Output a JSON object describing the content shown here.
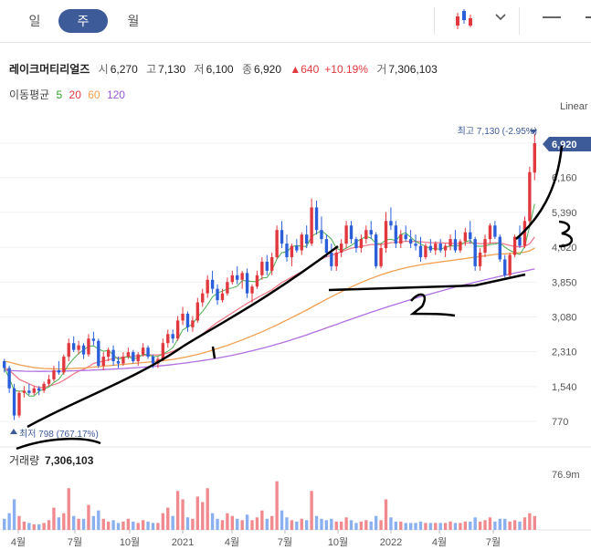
{
  "toolbar": {
    "tabs": [
      {
        "label": "일",
        "active": false
      },
      {
        "label": "주",
        "active": true
      },
      {
        "label": "월",
        "active": false
      }
    ],
    "chart_type_icon": "candlestick-icon",
    "dropdown_icon": "chevron-down-icon",
    "menu_icon": "minus-icon"
  },
  "stock": {
    "name": "레이크머티리얼즈",
    "open_label": "시",
    "open": "6,270",
    "high_label": "고",
    "high": "7,130",
    "low_label": "저",
    "low": "6,100",
    "close_label": "종",
    "close": "6,920",
    "change": "▲640",
    "change_pct": "+10.19%",
    "volume_label": "거",
    "volume": "7,306,103"
  },
  "moving_avg": {
    "label": "이동평균",
    "periods": [
      {
        "value": "5",
        "color": "#2ca02c"
      },
      {
        "value": "20",
        "color": "#e0383e"
      },
      {
        "value": "60",
        "color": "#f0a050"
      },
      {
        "value": "120",
        "color": "#9b59d6"
      }
    ]
  },
  "colors": {
    "up": "#e0383e",
    "down": "#2b5fd9",
    "up_volume": "#f08a8f",
    "down_volume": "#8ab0f0",
    "badge": "#3d5a99"
  },
  "chart_data": {
    "type": "candlestick",
    "scale_label": "Linear",
    "y_ticks": [
      "6,920",
      "6,160",
      "5,390",
      "4,620",
      "3,850",
      "3,080",
      "2,310",
      "1,540",
      "770"
    ],
    "ylim": [
      600,
      7300
    ],
    "x_ticks": [
      "4월",
      "7월",
      "10월",
      "2021",
      "4월",
      "7월",
      "10월",
      "2022",
      "4월",
      "7월"
    ],
    "current_price": "6,920",
    "max_label": "최고 7,130 (-2.95%)",
    "min_label": "최저 798 (767.17%)",
    "volume_label": "거래량",
    "volume_value": "7,306,103",
    "volume_axis_label": "76.9m",
    "candles": [
      [
        2100,
        2150,
        1850,
        1950
      ],
      [
        1950,
        2000,
        1400,
        1500
      ],
      [
        1500,
        1600,
        800,
        900
      ],
      [
        900,
        1450,
        850,
        1400
      ],
      [
        1400,
        1550,
        1300,
        1450
      ],
      [
        1450,
        1600,
        1350,
        1400
      ],
      [
        1400,
        1550,
        1350,
        1500
      ],
      [
        1500,
        1550,
        1350,
        1450
      ],
      [
        1450,
        1650,
        1400,
        1600
      ],
      [
        1600,
        1800,
        1550,
        1700
      ],
      [
        1700,
        2000,
        1650,
        1900
      ],
      [
        1900,
        2100,
        1800,
        1850
      ],
      [
        1850,
        2250,
        1800,
        2200
      ],
      [
        2200,
        2600,
        2100,
        2500
      ],
      [
        2500,
        2650,
        2300,
        2350
      ],
      [
        2350,
        2550,
        2250,
        2450
      ],
      [
        2450,
        2500,
        2150,
        2250
      ],
      [
        2250,
        2700,
        2200,
        2600
      ],
      [
        2600,
        2750,
        2450,
        2550
      ],
      [
        2550,
        2600,
        1950,
        2000
      ],
      [
        2000,
        2300,
        1900,
        2200
      ],
      [
        2200,
        2400,
        2100,
        2350
      ],
      [
        2350,
        2450,
        2000,
        2100
      ],
      [
        2100,
        2200,
        1950,
        2050
      ],
      [
        2050,
        2300,
        2000,
        2200
      ],
      [
        2200,
        2400,
        2150,
        2300
      ],
      [
        2300,
        2350,
        2050,
        2100
      ],
      [
        2100,
        2300,
        2000,
        2250
      ],
      [
        2250,
        2500,
        2200,
        2400
      ],
      [
        2400,
        2450,
        2150,
        2200
      ],
      [
        2200,
        2250,
        1950,
        2050
      ],
      [
        2050,
        2200,
        1950,
        2150
      ],
      [
        2150,
        2600,
        2100,
        2500
      ],
      [
        2500,
        2800,
        2400,
        2700
      ],
      [
        2700,
        2800,
        2500,
        2600
      ],
      [
        2600,
        3100,
        2550,
        3000
      ],
      [
        3000,
        3300,
        2900,
        3150
      ],
      [
        3150,
        3200,
        2750,
        2850
      ],
      [
        2850,
        3100,
        2750,
        3000
      ],
      [
        3000,
        3500,
        2950,
        3400
      ],
      [
        3400,
        3700,
        3300,
        3600
      ],
      [
        3600,
        4000,
        3500,
        3900
      ],
      [
        3900,
        4100,
        3600,
        3700
      ],
      [
        3700,
        3800,
        3350,
        3450
      ],
      [
        3450,
        3700,
        3400,
        3600
      ],
      [
        3600,
        3950,
        3550,
        3850
      ],
      [
        3850,
        4100,
        3800,
        4000
      ],
      [
        4000,
        4200,
        3800,
        3900
      ],
      [
        3900,
        4100,
        3700,
        4050
      ],
      [
        4050,
        4150,
        3500,
        3600
      ],
      [
        3600,
        3800,
        3400,
        3750
      ],
      [
        3750,
        4100,
        3700,
        4000
      ],
      [
        4000,
        4400,
        3900,
        4300
      ],
      [
        4300,
        4450,
        4000,
        4100
      ],
      [
        4100,
        4500,
        4000,
        4400
      ],
      [
        4400,
        5100,
        4350,
        5000
      ],
      [
        5000,
        5200,
        4600,
        4700
      ],
      [
        4700,
        4900,
        4300,
        4400
      ],
      [
        4400,
        4700,
        4200,
        4650
      ],
      [
        4650,
        4800,
        4500,
        4550
      ],
      [
        4550,
        4950,
        4450,
        4900
      ],
      [
        4900,
        5100,
        4600,
        4700
      ],
      [
        4700,
        5700,
        4650,
        5500
      ],
      [
        5500,
        5650,
        4900,
        5000
      ],
      [
        5000,
        5300,
        4700,
        4800
      ],
      [
        4800,
        4900,
        4400,
        4500
      ],
      [
        4500,
        4700,
        4100,
        4200
      ],
      [
        4200,
        4600,
        4100,
        4500
      ],
      [
        4500,
        4800,
        4400,
        4700
      ],
      [
        4700,
        5200,
        4600,
        5100
      ],
      [
        5100,
        5200,
        4700,
        4800
      ],
      [
        4800,
        4850,
        4500,
        4600
      ],
      [
        4600,
        4900,
        4500,
        4800
      ],
      [
        4800,
        5100,
        4700,
        5000
      ],
      [
        5000,
        5200,
        4800,
        4900
      ],
      [
        4900,
        4950,
        4150,
        4200
      ],
      [
        4200,
        4700,
        4150,
        4600
      ],
      [
        4600,
        5400,
        4500,
        5200
      ],
      [
        5200,
        5500,
        5000,
        5100
      ],
      [
        5100,
        5200,
        4600,
        4700
      ],
      [
        4700,
        5000,
        4600,
        4900
      ],
      [
        4900,
        5100,
        4750,
        4800
      ],
      [
        4800,
        5000,
        4600,
        4700
      ],
      [
        4700,
        4900,
        4550,
        4650
      ],
      [
        4650,
        4850,
        4300,
        4400
      ],
      [
        4400,
        4700,
        4350,
        4650
      ],
      [
        4650,
        4800,
        4500,
        4550
      ],
      [
        4550,
        4750,
        4450,
        4700
      ],
      [
        4700,
        4800,
        4500,
        4550
      ],
      [
        4550,
        4700,
        4400,
        4650
      ],
      [
        4650,
        4900,
        4550,
        4800
      ],
      [
        4800,
        5000,
        4500,
        4550
      ],
      [
        4550,
        4800,
        4500,
        4750
      ],
      [
        4750,
        5050,
        4650,
        4950
      ],
      [
        4950,
        5200,
        4700,
        4800
      ],
      [
        4800,
        4850,
        4100,
        4200
      ],
      [
        4200,
        4600,
        4100,
        4500
      ],
      [
        4500,
        4900,
        4400,
        4800
      ],
      [
        4800,
        5150,
        4700,
        5100
      ],
      [
        5100,
        5200,
        4800,
        4850
      ],
      [
        4850,
        4900,
        4300,
        4350
      ],
      [
        4350,
        4450,
        3950,
        4000
      ],
      [
        4000,
        4500,
        3950,
        4450
      ],
      [
        4450,
        4900,
        4400,
        4850
      ],
      [
        4850,
        5100,
        4600,
        4650
      ],
      [
        4650,
        5300,
        4600,
        5200
      ],
      [
        5200,
        6400,
        5100,
        6280
      ],
      [
        6270,
        7130,
        6100,
        6920
      ]
    ],
    "ma20": [
      1950,
      1900,
      1800,
      1700,
      1650,
      1600,
      1550,
      1520,
      1520,
      1550,
      1580,
      1620,
      1680,
      1750,
      1820,
      1880,
      1920,
      1980,
      2050,
      2080,
      2100,
      2130,
      2160,
      2180,
      2190,
      2200,
      2210,
      2220,
      2230,
      2240,
      2240,
      2240,
      2250,
      2280,
      2320,
      2370,
      2430,
      2490,
      2550,
      2620,
      2700,
      2790,
      2880,
      2960,
      3030,
      3100,
      3170,
      3240,
      3310,
      3380,
      3440,
      3500,
      3560,
      3620,
      3680,
      3760,
      3840,
      3900,
      3960,
      4020,
      4080,
      4140,
      4230,
      4300,
      4360,
      4410,
      4440,
      4480,
      4520,
      4560,
      4600,
      4620,
      4640,
      4660,
      4680,
      4680,
      4680,
      4700,
      4720,
      4730,
      4740,
      4750,
      4750,
      4750,
      4740,
      4730,
      4720,
      4720,
      4720,
      4710,
      4710,
      4700,
      4700,
      4710,
      4720,
      4710,
      4700,
      4700,
      4710,
      4720,
      4710,
      4690,
      4660,
      4640,
      4630,
      4640,
      4700,
      4850
    ],
    "ma60": [
      2100,
      2080,
      2050,
      2020,
      2000,
      1980,
      1960,
      1950,
      1940,
      1935,
      1930,
      1930,
      1930,
      1935,
      1940,
      1945,
      1950,
      1960,
      1970,
      1980,
      1990,
      2000,
      2010,
      2020,
      2030,
      2040,
      2050,
      2060,
      2070,
      2080,
      2090,
      2100,
      2110,
      2125,
      2140,
      2160,
      2180,
      2200,
      2225,
      2250,
      2280,
      2310,
      2345,
      2380,
      2415,
      2450,
      2490,
      2530,
      2570,
      2615,
      2660,
      2705,
      2750,
      2800,
      2850,
      2900,
      2955,
      3010,
      3065,
      3120,
      3175,
      3230,
      3290,
      3350,
      3410,
      3470,
      3525,
      3580,
      3635,
      3690,
      3740,
      3790,
      3840,
      3885,
      3930,
      3970,
      4010,
      4045,
      4080,
      4110,
      4140,
      4165,
      4190,
      4210,
      4230,
      4250,
      4265,
      4280,
      4295,
      4310,
      4325,
      4340,
      4355,
      4370,
      4385,
      4400,
      4415,
      4430,
      4445,
      4460,
      4470,
      4475,
      4480,
      4490,
      4500,
      4510,
      4540,
      4600
    ],
    "ma120": [
      1900,
      1895,
      1890,
      1885,
      1880,
      1878,
      1876,
      1875,
      1875,
      1876,
      1878,
      1880,
      1882,
      1885,
      1888,
      1892,
      1896,
      1900,
      1905,
      1910,
      1915,
      1920,
      1926,
      1932,
      1938,
      1945,
      1952,
      1960,
      1968,
      1976,
      1985,
      1994,
      2004,
      2015,
      2027,
      2040,
      2053,
      2067,
      2082,
      2098,
      2115,
      2132,
      2150,
      2169,
      2189,
      2210,
      2232,
      2255,
      2279,
      2304,
      2330,
      2357,
      2385,
      2414,
      2444,
      2475,
      2507,
      2540,
      2574,
      2609,
      2645,
      2682,
      2720,
      2758,
      2797,
      2836,
      2875,
      2914,
      2953,
      2992,
      3030,
      3068,
      3106,
      3144,
      3181,
      3218,
      3254,
      3290,
      3325,
      3360,
      3394,
      3428,
      3461,
      3494,
      3526,
      3558,
      3589,
      3620,
      3650,
      3680,
      3709,
      3738,
      3766,
      3794,
      3821,
      3848,
      3874,
      3900,
      3926,
      3951,
      3976,
      4000,
      4024,
      4048,
      4071,
      4094,
      4117,
      4140
    ],
    "volumes": [
      8,
      12,
      22,
      10,
      6,
      5,
      4,
      4,
      5,
      7,
      16,
      9,
      12,
      30,
      10,
      8,
      8,
      18,
      10,
      14,
      8,
      6,
      7,
      5,
      6,
      8,
      6,
      5,
      7,
      6,
      5,
      5,
      12,
      16,
      10,
      28,
      22,
      9,
      8,
      24,
      20,
      30,
      12,
      8,
      7,
      12,
      10,
      8,
      7,
      11,
      7,
      9,
      14,
      8,
      10,
      35,
      14,
      9,
      7,
      6,
      8,
      7,
      28,
      10,
      8,
      7,
      8,
      6,
      6,
      9,
      7,
      5,
      6,
      7,
      6,
      10,
      7,
      22,
      9,
      6,
      6,
      5,
      5,
      5,
      6,
      5,
      5,
      5,
      5,
      5,
      6,
      5,
      5,
      6,
      6,
      9,
      6,
      7,
      9,
      6,
      8,
      8,
      6,
      7,
      6,
      9,
      12,
      10
    ]
  }
}
